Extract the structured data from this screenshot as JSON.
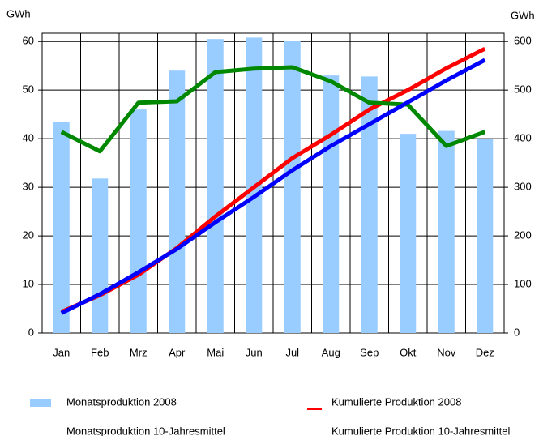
{
  "chart_data": {
    "type": "bar-line",
    "y_label": "GWh",
    "y2_label": "GWh",
    "categories": [
      "Jan",
      "Feb",
      "Mrz",
      "Apr",
      "Mai",
      "Jun",
      "Jul",
      "Aug",
      "Sep",
      "Okt",
      "Nov",
      "Dez"
    ],
    "ylim": [
      0,
      61.7
    ],
    "yticks": [
      0,
      10,
      20,
      30,
      40,
      50,
      60
    ],
    "y2lim": [
      0,
      617
    ],
    "y2ticks": [
      0,
      100,
      200,
      300,
      400,
      500,
      600
    ],
    "grid": true,
    "series": [
      {
        "name": "Monatsproduktion 2008",
        "type": "bar",
        "color": "#99ccff",
        "values": [
          43.5,
          31.8,
          46,
          54,
          60.5,
          60.8,
          60.2,
          53,
          52.8,
          41,
          41.6,
          40
        ]
      },
      {
        "name": "Kumulierte Produktion 2008",
        "type": "line",
        "axis": "y2",
        "color": "#ff0000",
        "values": [
          43.5,
          78,
          120,
          175,
          240,
          300,
          360,
          408,
          460,
          500,
          545,
          585
        ]
      },
      {
        "name": "Monatsproduktion 10-Jahresmittel",
        "type": "line",
        "color": "#008800",
        "values": [
          41.4,
          37.4,
          47.4,
          47.7,
          53.7,
          54.4,
          54.7,
          51.8,
          47.4,
          47,
          38.5,
          41.4
        ]
      },
      {
        "name": "Kumulierte Produktion 10-Jahresmittel",
        "type": "line",
        "axis": "y2",
        "color": "#0000ff",
        "values": [
          41,
          80,
          125,
          173,
          228,
          280,
          335,
          385,
          430,
          475,
          520,
          562
        ]
      }
    ]
  }
}
